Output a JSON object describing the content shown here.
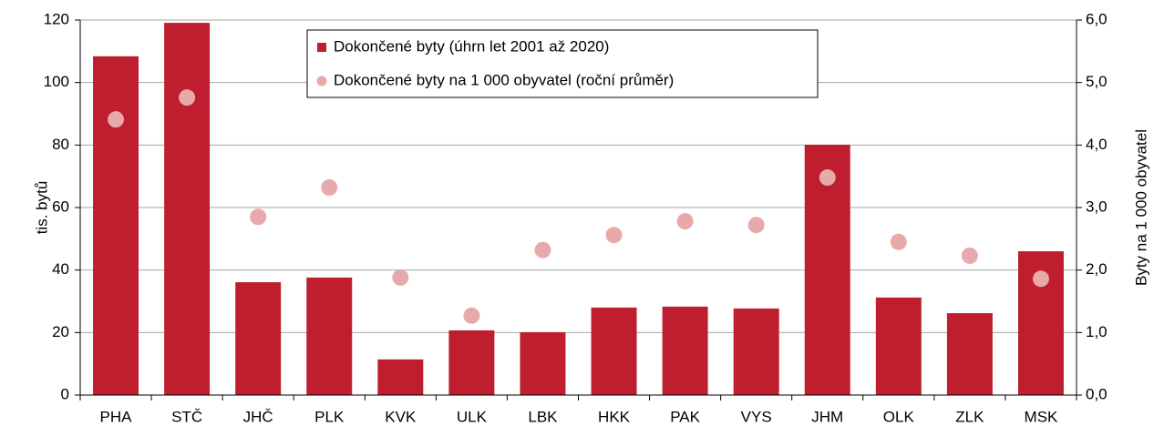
{
  "chart_data": {
    "type": "bar",
    "categories": [
      "PHA",
      "STČ",
      "JHČ",
      "PLK",
      "KVK",
      "ULK",
      "LBK",
      "HKK",
      "PAK",
      "VYS",
      "JHM",
      "OLK",
      "ZLK",
      "MSK"
    ],
    "series": [
      {
        "name": "Dokončené byty (úhrn let 2001 až 2020)",
        "type": "bar",
        "color": "#be1e2d",
        "axis": "y",
        "values": [
          108.4,
          119.1,
          36.1,
          37.6,
          11.4,
          20.7,
          20.1,
          28.0,
          28.3,
          27.7,
          80.1,
          31.2,
          26.2,
          46.0
        ]
      },
      {
        "name": "Dokončené byty na 1 000 obyvatel (roční průměr)",
        "type": "scatter",
        "color": "#e8a9ab",
        "axis": "y2",
        "values": [
          4.41,
          4.76,
          2.85,
          3.32,
          1.88,
          1.27,
          2.32,
          2.56,
          2.78,
          2.72,
          3.48,
          2.45,
          2.23,
          1.86
        ]
      }
    ],
    "ylabel": "tis. bytů",
    "y2label": "Byty na 1 000 obyvatel",
    "ylim": [
      0,
      120
    ],
    "yticks": [
      0,
      20,
      40,
      60,
      80,
      100,
      120
    ],
    "y2lim": [
      0,
      6
    ],
    "y2ticks": [
      {
        "value": 0,
        "label": "0,0"
      },
      {
        "value": 1,
        "label": "1,0"
      },
      {
        "value": 2,
        "label": "2,0"
      },
      {
        "value": 3,
        "label": "3,0"
      },
      {
        "value": 4,
        "label": "4,0"
      },
      {
        "value": 5,
        "label": "5,0"
      },
      {
        "value": 6,
        "label": "6,0"
      }
    ],
    "grid": true,
    "legend": "top"
  }
}
